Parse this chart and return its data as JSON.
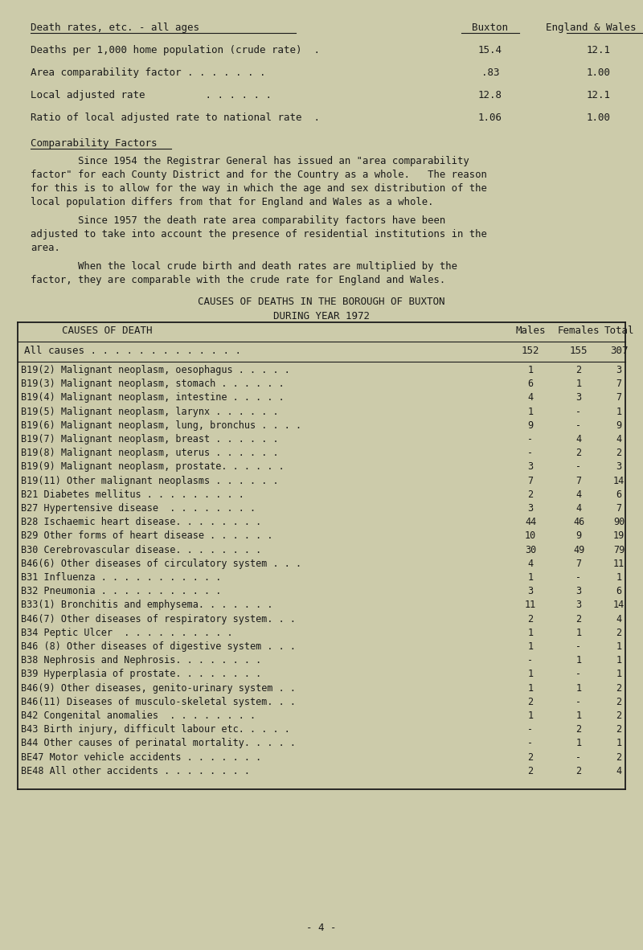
{
  "bg_color": "#cccbaa",
  "text_color": "#1a1a1a",
  "page_width": 8.0,
  "page_height": 11.82,
  "header_title": "Death rates, etc. - all ages",
  "header_col1": "Buxton",
  "header_col2": "England & Wales",
  "header_rows": [
    [
      "Deaths per 1,000 home population (crude rate)  .",
      "15.4",
      "12.1"
    ],
    [
      "Area comparability factor . . . . . . .",
      ".83",
      "1.00"
    ],
    [
      "Local adjusted rate          . . . . . .",
      "12.8",
      "12.1"
    ],
    [
      "Ratio of local adjusted rate to national rate  .",
      "1.06",
      "1.00"
    ]
  ],
  "section_title": "Comparability Factors",
  "para1_lines": [
    "        Since 1954 the Registrar General has issued an \"area comparability",
    "factor\" for each County District and for the Country as a whole.   The reason",
    "for this is to allow for the way in which the age and sex distribution of the",
    "local population differs from that for England and Wales as a whole."
  ],
  "para2_lines": [
    "        Since 1957 the death rate area comparability factors have been",
    "adjusted to take into account the presence of residential institutions in the",
    "area."
  ],
  "para3_lines": [
    "        When the local crude birth and death rates are multiplied by the",
    "factor, they are comparable with the crude rate for England and Wales."
  ],
  "table_title1": "CAUSES OF DEATHS IN THE BOROUGH OF BUXTON",
  "table_title2": "DURING YEAR 1972",
  "table_header": [
    "CAUSES OF DEATH",
    "Males",
    "Females",
    "Total"
  ],
  "all_causes": [
    "All causes . . . . . . . . . . . . .",
    "152",
    "155",
    "307"
  ],
  "causes": [
    [
      "B19(2) Malignant neoplasm, oesophagus . . . . .",
      "1",
      "2",
      "3"
    ],
    [
      "B19(3) Malignant neoplasm, stomach . . . . . .",
      "6",
      "1",
      "7"
    ],
    [
      "B19(4) Malignant neoplasm, intestine . . . . .",
      "4",
      "3",
      "7"
    ],
    [
      "B19(5) Malignant neoplasm, larynx . . . . . .",
      "1",
      "-",
      "1"
    ],
    [
      "B19(6) Malignant neoplasm, lung, bronchus . . . .",
      "9",
      "-",
      "9"
    ],
    [
      "B19(7) Malignant neoplasm, breast . . . . . .",
      "-",
      "4",
      "4"
    ],
    [
      "B19(8) Malignant neoplasm, uterus . . . . . .",
      "-",
      "2",
      "2"
    ],
    [
      "B19(9) Malignant neoplasm, prostate. . . . . .",
      "3",
      "-",
      "3"
    ],
    [
      "B19(11) Other malignant neoplasms . . . . . .",
      "7",
      "7",
      "14"
    ],
    [
      "B21 Diabetes mellitus . . . . . . . . .",
      "2",
      "4",
      "6"
    ],
    [
      "B27 Hypertensive disease  . . . . . . . .",
      "3",
      "4",
      "7"
    ],
    [
      "B28 Ischaemic heart disease. . . . . . . .",
      "44",
      "46",
      "90"
    ],
    [
      "B29 Other forms of heart disease . . . . . .",
      "10",
      "9",
      "19"
    ],
    [
      "B30 Cerebrovascular disease. . . . . . . .",
      "30",
      "49",
      "79"
    ],
    [
      "B46(6) Other diseases of circulatory system . . .",
      "4",
      "7",
      "11"
    ],
    [
      "B31 Influenza . . . . . . . . . . .",
      "1",
      "-",
      "1"
    ],
    [
      "B32 Pneumonia . . . . . . . . . . .",
      "3",
      "3",
      "6"
    ],
    [
      "B33(1) Bronchitis and emphysema. . . . . . .",
      "11",
      "3",
      "14"
    ],
    [
      "B46(7) Other diseases of respiratory system. . .",
      "2",
      "2",
      "4"
    ],
    [
      "B34 Peptic Ulcer  . . . . . . . . . .",
      "1",
      "1",
      "2"
    ],
    [
      "B46 (8) Other diseases of digestive system . . .",
      "1",
      "-",
      "1"
    ],
    [
      "B38 Nephrosis and Nephrosis. . . . . . . .",
      "-",
      "1",
      "1"
    ],
    [
      "B39 Hyperplasia of prostate. . . . . . . .",
      "1",
      "-",
      "1"
    ],
    [
      "B46(9) Other diseases, genito-urinary system . .",
      "1",
      "1",
      "2"
    ],
    [
      "B46(11) Diseases of musculo-skeletal system. . .",
      "2",
      "-",
      "2"
    ],
    [
      "B42 Congenital anomalies  . . . . . . . .",
      "1",
      "1",
      "2"
    ],
    [
      "B43 Birth injury, difficult labour etc. . . . .",
      "-",
      "2",
      "2"
    ],
    [
      "B44 Other causes of perinatal mortality. . . . .",
      "-",
      "1",
      "1"
    ],
    [
      "BE47 Motor vehicle accidents . . . . . . .",
      "2",
      "-",
      "2"
    ],
    [
      "BE48 All other accidents . . . . . . . .",
      "2",
      "2",
      "4"
    ]
  ],
  "footer": "- 4 -"
}
